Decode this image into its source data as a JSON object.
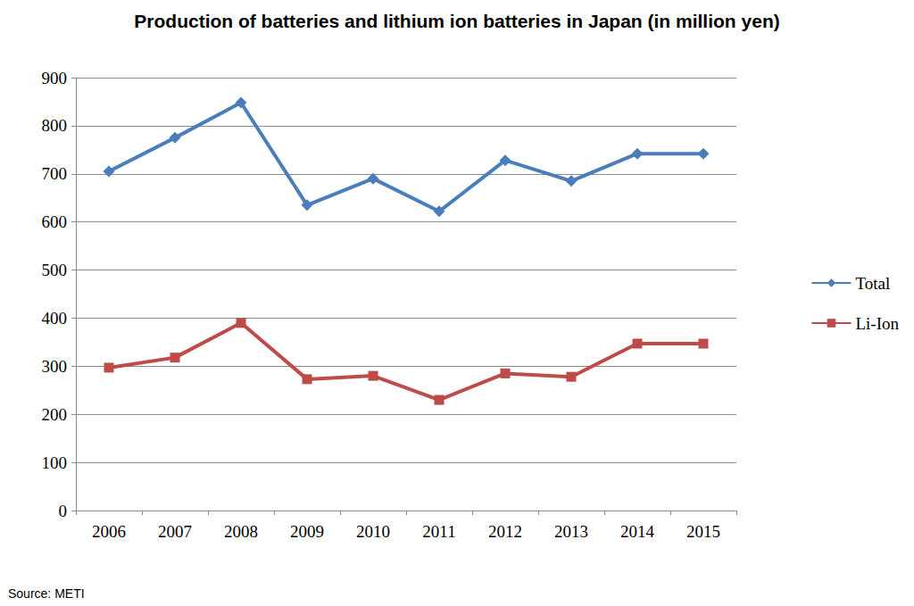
{
  "chart_data": {
    "type": "line",
    "title": "Production of batteries and lithium ion batteries in Japan (in million yen)",
    "source": "Source: METI",
    "categories": [
      "2006",
      "2007",
      "2008",
      "2009",
      "2010",
      "2011",
      "2012",
      "2013",
      "2014",
      "2015"
    ],
    "series": [
      {
        "name": "Total",
        "color": "#4a7ebb",
        "marker": "diamond",
        "values": [
          705,
          775,
          848,
          635,
          690,
          622,
          728,
          685,
          742,
          742
        ]
      },
      {
        "name": "Li-Ion",
        "color": "#be4b48",
        "marker": "square",
        "values": [
          297,
          318,
          390,
          273,
          280,
          230,
          285,
          278,
          347,
          347
        ]
      }
    ],
    "ylim": [
      0,
      900
    ],
    "yticks": [
      0,
      100,
      200,
      300,
      400,
      500,
      600,
      700,
      800,
      900
    ],
    "grid": true,
    "legend": "right"
  }
}
